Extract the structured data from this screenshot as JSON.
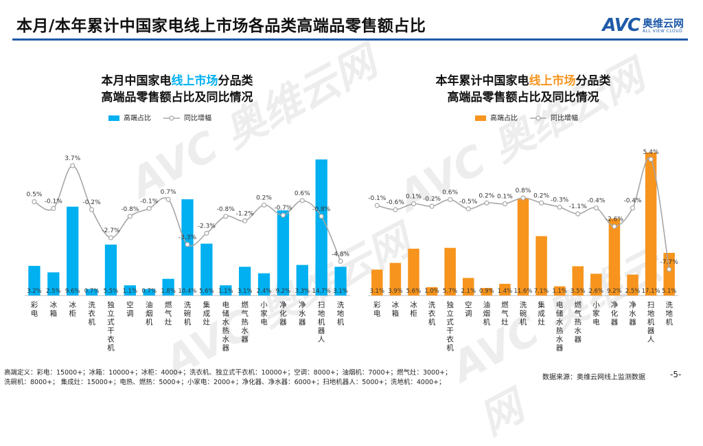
{
  "page": {
    "title": "本月/本年累计中国家电线上市场各品类高端品零售额占比",
    "logo_mark": "AVC",
    "logo_cn": "奥维云网",
    "logo_en": "ALL VIEW CLOUD",
    "watermark": "AVC 奥维云网",
    "footnote_line1": "高端定义：彩电：15000+；冰箱：10000+；冰柜：4000+；洗衣机、独立式干衣机：10000+；空调：8000+；油烟机：7000+；燃气灶：3000+；",
    "footnote_line2": "洗碗机：8000+；   集成灶：15000+；电热、燃热：5000+；小家电：2000+；净化器、净水器：6000+；扫地机器人：5000+；洗地机：4000+；",
    "source": "数据来源：奥维云网线上监测数据",
    "page_number": "-5-"
  },
  "colors": {
    "cyan": "#00b0f0",
    "orange": "#f7941d",
    "line": "#a6a6a6",
    "header_rule": "#1e5aa8"
  },
  "chart_data": [
    {
      "type": "bar",
      "title_pre": "本月中国家电",
      "title_highlight": "线上市场",
      "title_post": "分品类",
      "title_line2": "高端品零售额占比及同比情况",
      "legend_bar": "高端占比",
      "legend_line": "同比增幅",
      "categories": [
        "彩电",
        "冰箱",
        "冰柜",
        "洗衣机",
        "独立式干衣机",
        "空调",
        "油烟机",
        "燃气灶",
        "洗碗机",
        "集成灶",
        "电储水热水器",
        "燃气热水器",
        "小家电",
        "净化器",
        "净水器",
        "扫地机器人",
        "洗地机"
      ],
      "series": [
        {
          "name": "高端占比",
          "kind": "bar",
          "values": [
            3.2,
            2.5,
            9.6,
            0.7,
            5.5,
            1.1,
            0.7,
            1.8,
            10.4,
            5.6,
            1.1,
            3.1,
            2.4,
            9.2,
            3.3,
            14.7,
            3.1
          ],
          "labels": [
            "3.2%",
            "2.5%",
            "9.6%",
            "0.7%",
            "5.5%",
            "1.1%",
            "0.7%",
            "1.8%",
            "10.4%",
            "5.6%",
            "1.1%",
            "3.1%",
            "2.4%",
            "9.2%",
            "3.3%",
            "14.7%",
            "3.1%"
          ]
        },
        {
          "name": "同比增幅",
          "kind": "line",
          "values": [
            0.5,
            -0.1,
            3.7,
            -0.2,
            -2.7,
            -0.8,
            -0.1,
            0.7,
            -3.3,
            -2.3,
            -0.8,
            -1.2,
            0.2,
            -0.7,
            0.6,
            -0.8,
            -4.8
          ],
          "labels": [
            "0.5%",
            "-0.1%",
            "3.7%",
            "-0.2%",
            "-2.7%",
            "-0.8%",
            "-0.1%",
            "0.7%",
            "-3.3%",
            "-2.3%",
            "-0.8%",
            "-1.2%",
            "0.2%",
            "-0.7%",
            "0.6%",
            "-0.8%",
            "-4.8%"
          ]
        }
      ],
      "bar_ylim": [
        0,
        15
      ],
      "line_ylim": [
        -6,
        4.5
      ]
    },
    {
      "type": "bar",
      "title_pre": "本年累计中国家电",
      "title_highlight": "线上市场",
      "title_post": "分品类",
      "title_line2": "高端品零售额占比及同比情况",
      "legend_bar": "高端占比",
      "legend_line": "同比增幅",
      "categories": [
        "彩电",
        "冰箱",
        "冰柜",
        "洗衣机",
        "独立式干衣机",
        "空调",
        "油烟机",
        "燃气灶",
        "洗碗机",
        "集成灶",
        "电储水热水器",
        "燃气热水器",
        "小家电",
        "净化器",
        "净水器",
        "扫地机器人",
        "洗地机"
      ],
      "series": [
        {
          "name": "高端占比",
          "kind": "bar",
          "values": [
            3.1,
            3.9,
            5.6,
            1.0,
            5.7,
            2.1,
            0.9,
            1.4,
            11.6,
            7.1,
            1.1,
            3.5,
            2.6,
            9.2,
            2.5,
            17.1,
            5.1
          ],
          "labels": [
            "3.1%",
            "3.9%",
            "5.6%",
            "1.0%",
            "5.7%",
            "2.1%",
            "0.9%",
            "1.4%",
            "11.6%",
            "7.1%",
            "1.1%",
            "3.5%",
            "2.6%",
            "9.2%",
            "2.5%",
            "17.1%",
            "5.1%"
          ]
        },
        {
          "name": "同比增幅",
          "kind": "line",
          "values": [
            -0.1,
            -0.6,
            0.1,
            -0.2,
            0.6,
            -0.5,
            0.2,
            0.1,
            0.8,
            0.2,
            -0.3,
            -1.1,
            -0.4,
            -2.6,
            -0.4,
            5.4,
            -7.7
          ],
          "labels": [
            "-0.1%",
            "-0.6%",
            "0.1%",
            "-0.2%",
            "0.6%",
            "-0.5%",
            "0.2%",
            "0.1%",
            "0.8%",
            "0.2%",
            "-0.3%",
            "-1.1%",
            "-0.4%",
            "-2.6%",
            "-0.4%",
            "5.4%",
            "-7.7%"
          ]
        }
      ],
      "bar_ylim": [
        0,
        17.1
      ],
      "line_ylim": [
        -10,
        6.2
      ]
    }
  ]
}
